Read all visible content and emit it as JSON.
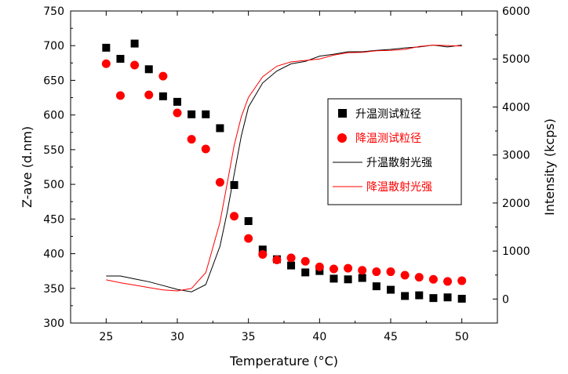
{
  "chart_data": {
    "type": "scatter+line",
    "title": "",
    "xlabel": "Temperature (°C)",
    "ylabel_left": "Z-ave (d.nm)",
    "ylabel_right": "Intensity (kcps)",
    "xlim": [
      22.5,
      52.5
    ],
    "ylim_left": [
      300,
      750
    ],
    "ylim_right": [
      -500,
      6000
    ],
    "x_ticks": [
      25,
      30,
      35,
      40,
      45,
      50
    ],
    "y_left_ticks": [
      300,
      350,
      400,
      450,
      500,
      550,
      600,
      650,
      700,
      750
    ],
    "y_right_ticks": [
      0,
      1000,
      2000,
      3000,
      4000,
      5000,
      6000
    ],
    "grid": false,
    "legend_position": "center-right",
    "colors": {
      "heating": "#000000",
      "cooling": "#ff0000",
      "axis": "#000000"
    },
    "series": [
      {
        "name": "升温测试粒径",
        "kind": "scatter",
        "marker": "square",
        "axis": "left",
        "color": "#000000",
        "x": [
          25,
          26,
          27,
          28,
          29,
          30,
          31,
          32,
          33,
          34,
          35,
          36,
          37,
          38,
          39,
          40,
          41,
          42,
          43,
          44,
          45,
          46,
          47,
          48,
          49,
          50
        ],
        "y": [
          697,
          681,
          703,
          666,
          627,
          619,
          601,
          601,
          581,
          499,
          447,
          406,
          392,
          383,
          373,
          375,
          364,
          363,
          365,
          353,
          348,
          339,
          340,
          336,
          337,
          335
        ]
      },
      {
        "name": "降温测试粒径",
        "kind": "scatter",
        "marker": "circle",
        "axis": "left",
        "color": "#ff0000",
        "x": [
          25,
          26,
          27,
          28,
          29,
          30,
          31,
          32,
          33,
          34,
          35,
          36,
          37,
          38,
          39,
          40,
          41,
          42,
          43,
          44,
          45,
          46,
          47,
          48,
          49,
          50
        ],
        "y": [
          674,
          628,
          672,
          629,
          656,
          603,
          565,
          551,
          503,
          454,
          422,
          399,
          391,
          394,
          389,
          381,
          378,
          379,
          376,
          374,
          374,
          369,
          366,
          363,
          360,
          361
        ]
      },
      {
        "name": "升温散射光强",
        "kind": "line",
        "axis": "right",
        "color": "#000000",
        "x": [
          25,
          26,
          27,
          28,
          29,
          30,
          31,
          32,
          33,
          33.5,
          34,
          34.5,
          35,
          36,
          37,
          38,
          39,
          40,
          41,
          42,
          43,
          44,
          45,
          46,
          47,
          48,
          49,
          50
        ],
        "y": [
          480,
          480,
          420,
          360,
          280,
          200,
          150,
          300,
          1100,
          1800,
          2600,
          3400,
          4000,
          4500,
          4750,
          4900,
          4950,
          5060,
          5100,
          5150,
          5150,
          5180,
          5200,
          5230,
          5250,
          5290,
          5250,
          5290
        ]
      },
      {
        "name": "降温散射光强",
        "kind": "line",
        "axis": "right",
        "color": "#ff0000",
        "x": [
          25,
          26,
          27,
          28,
          29,
          30,
          31,
          32,
          33,
          33.5,
          34,
          34.5,
          35,
          36,
          37,
          38,
          39,
          40,
          41,
          42,
          43,
          44,
          45,
          46,
          47,
          48,
          49,
          50
        ],
        "y": [
          400,
          340,
          290,
          240,
          190,
          170,
          220,
          550,
          1600,
          2400,
          3200,
          3800,
          4200,
          4630,
          4850,
          4940,
          4970,
          5000,
          5080,
          5130,
          5140,
          5170,
          5180,
          5200,
          5260,
          5290,
          5280,
          5270
        ]
      }
    ]
  }
}
